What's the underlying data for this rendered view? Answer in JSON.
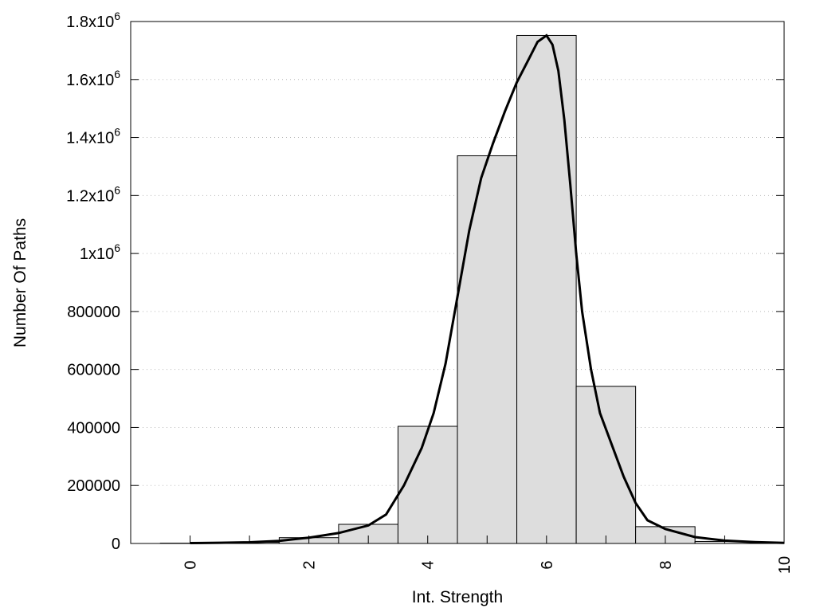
{
  "chart_data": {
    "type": "bar",
    "xlabel": "Int. Strength",
    "ylabel": "Number Of Paths",
    "xlim": [
      -1,
      10
    ],
    "ylim": [
      0,
      1800000
    ],
    "grid": true,
    "bin_width": 1,
    "x_ticks": [
      {
        "value": 0,
        "label": "0"
      },
      {
        "value": 2,
        "label": "2"
      },
      {
        "value": 4,
        "label": "4"
      },
      {
        "value": 6,
        "label": "6"
      },
      {
        "value": 8,
        "label": "8"
      },
      {
        "value": 10,
        "label": "10"
      }
    ],
    "y_ticks": [
      {
        "value": 0,
        "label": "0",
        "sup": ""
      },
      {
        "value": 200000,
        "label": "200000",
        "sup": ""
      },
      {
        "value": 400000,
        "label": "400000",
        "sup": ""
      },
      {
        "value": 600000,
        "label": "600000",
        "sup": ""
      },
      {
        "value": 800000,
        "label": "800000",
        "sup": ""
      },
      {
        "value": 1000000,
        "label": "1x10",
        "sup": "6"
      },
      {
        "value": 1200000,
        "label": "1.2x10",
        "sup": "6"
      },
      {
        "value": 1400000,
        "label": "1.4x10",
        "sup": "6"
      },
      {
        "value": 1600000,
        "label": "1.6x10",
        "sup": "6"
      },
      {
        "value": 1800000,
        "label": "1.8x10",
        "sup": "6"
      }
    ],
    "bars": [
      {
        "x": 0,
        "value": 1000
      },
      {
        "x": 1,
        "value": 4000
      },
      {
        "x": 2,
        "value": 20000
      },
      {
        "x": 3,
        "value": 66000
      },
      {
        "x": 4,
        "value": 404000
      },
      {
        "x": 5,
        "value": 1337000
      },
      {
        "x": 6,
        "value": 1752000
      },
      {
        "x": 7,
        "value": 542000
      },
      {
        "x": 8,
        "value": 58000
      },
      {
        "x": 9,
        "value": 7000
      }
    ],
    "curve": [
      [
        0,
        1500
      ],
      [
        0.5,
        2500
      ],
      [
        1,
        4000
      ],
      [
        1.5,
        9000
      ],
      [
        2,
        20000
      ],
      [
        2.5,
        36000
      ],
      [
        3,
        62000
      ],
      [
        3.3,
        100000
      ],
      [
        3.6,
        200000
      ],
      [
        3.9,
        330000
      ],
      [
        4.1,
        450000
      ],
      [
        4.3,
        620000
      ],
      [
        4.5,
        850000
      ],
      [
        4.7,
        1080000
      ],
      [
        4.9,
        1260000
      ],
      [
        5.1,
        1380000
      ],
      [
        5.3,
        1490000
      ],
      [
        5.5,
        1590000
      ],
      [
        5.7,
        1670000
      ],
      [
        5.85,
        1730000
      ],
      [
        6,
        1752000
      ],
      [
        6.1,
        1720000
      ],
      [
        6.2,
        1630000
      ],
      [
        6.3,
        1460000
      ],
      [
        6.4,
        1240000
      ],
      [
        6.5,
        1000000
      ],
      [
        6.6,
        800000
      ],
      [
        6.75,
        600000
      ],
      [
        6.9,
        450000
      ],
      [
        7.1,
        340000
      ],
      [
        7.3,
        230000
      ],
      [
        7.5,
        140000
      ],
      [
        7.7,
        80000
      ],
      [
        8,
        50000
      ],
      [
        8.5,
        22000
      ],
      [
        9,
        10000
      ],
      [
        9.5,
        5000
      ],
      [
        10,
        2000
      ]
    ]
  }
}
